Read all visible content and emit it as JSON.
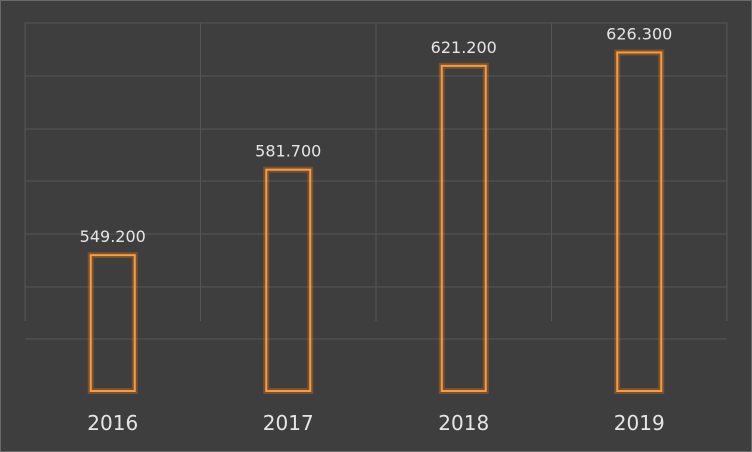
{
  "chart_data": {
    "type": "bar",
    "categories": [
      "2016",
      "2017",
      "2018",
      "2019"
    ],
    "values": [
      549.2,
      581.7,
      621.2,
      626.3
    ],
    "data_labels": [
      "549.200",
      "581.700",
      "621.200",
      "626.300"
    ],
    "title": "",
    "xlabel": "",
    "ylabel": "",
    "ylim": [
      497.5,
      637.5
    ],
    "grid": true,
    "colors": {
      "background": "#3e3e3e",
      "bar_outline": "#ff9a3a",
      "grid": "#555555",
      "text": "#e6e6e6"
    }
  }
}
